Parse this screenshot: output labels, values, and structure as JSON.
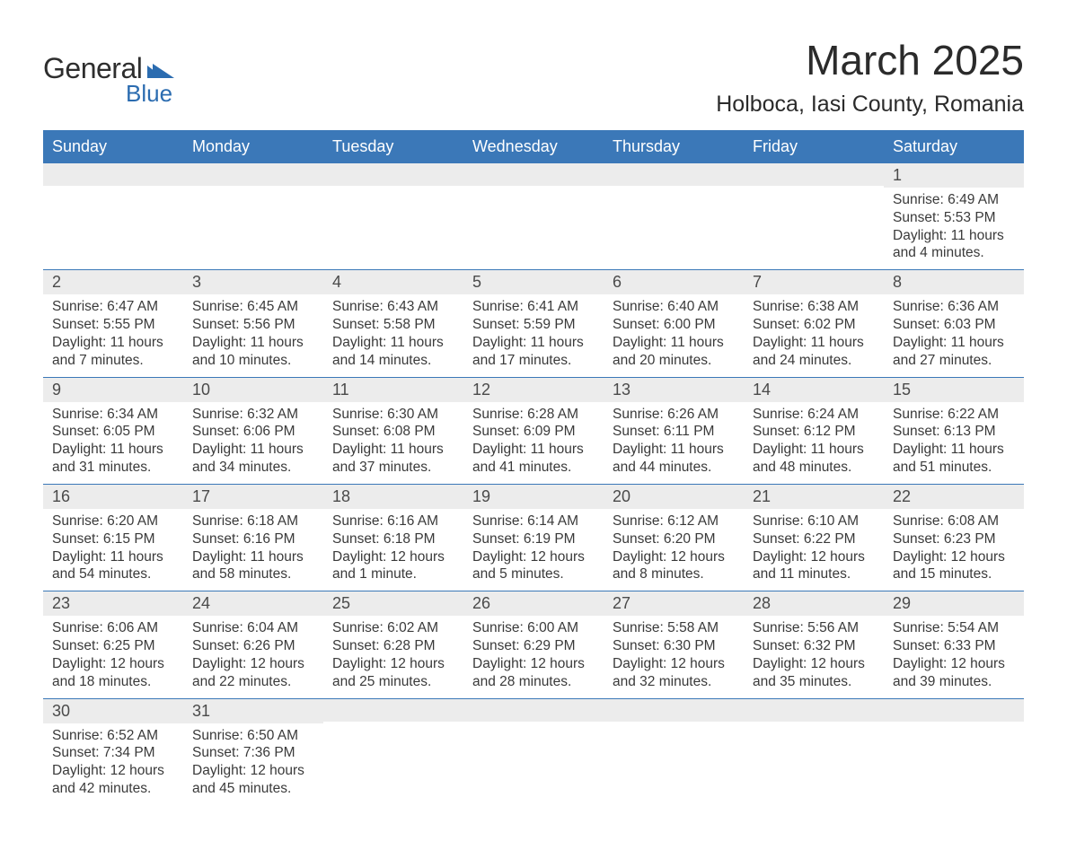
{
  "brand": {
    "logo_main": "General",
    "logo_sub": "Blue",
    "logo_color_dark": "#2e2e2e",
    "logo_color_accent": "#2b6cb0"
  },
  "header": {
    "month_title": "March 2025",
    "location": "Holboca, Iasi County, Romania"
  },
  "calendar": {
    "type": "table",
    "header_bg": "#3b78b8",
    "header_text_color": "#ffffff",
    "row_divider_color": "#3b78b8",
    "daynum_bg": "#ececec",
    "body_text_color": "#3a3a3a",
    "font_family": "Arial",
    "font_size_header": 18,
    "font_size_daynum": 18,
    "font_size_body": 15.5,
    "columns": [
      "Sunday",
      "Monday",
      "Tuesday",
      "Wednesday",
      "Thursday",
      "Friday",
      "Saturday"
    ],
    "weeks": [
      [
        null,
        null,
        null,
        null,
        null,
        null,
        {
          "n": "1",
          "sunrise": "Sunrise: 6:49 AM",
          "sunset": "Sunset: 5:53 PM",
          "daylight": "Daylight: 11 hours and 4 minutes."
        }
      ],
      [
        {
          "n": "2",
          "sunrise": "Sunrise: 6:47 AM",
          "sunset": "Sunset: 5:55 PM",
          "daylight": "Daylight: 11 hours and 7 minutes."
        },
        {
          "n": "3",
          "sunrise": "Sunrise: 6:45 AM",
          "sunset": "Sunset: 5:56 PM",
          "daylight": "Daylight: 11 hours and 10 minutes."
        },
        {
          "n": "4",
          "sunrise": "Sunrise: 6:43 AM",
          "sunset": "Sunset: 5:58 PM",
          "daylight": "Daylight: 11 hours and 14 minutes."
        },
        {
          "n": "5",
          "sunrise": "Sunrise: 6:41 AM",
          "sunset": "Sunset: 5:59 PM",
          "daylight": "Daylight: 11 hours and 17 minutes."
        },
        {
          "n": "6",
          "sunrise": "Sunrise: 6:40 AM",
          "sunset": "Sunset: 6:00 PM",
          "daylight": "Daylight: 11 hours and 20 minutes."
        },
        {
          "n": "7",
          "sunrise": "Sunrise: 6:38 AM",
          "sunset": "Sunset: 6:02 PM",
          "daylight": "Daylight: 11 hours and 24 minutes."
        },
        {
          "n": "8",
          "sunrise": "Sunrise: 6:36 AM",
          "sunset": "Sunset: 6:03 PM",
          "daylight": "Daylight: 11 hours and 27 minutes."
        }
      ],
      [
        {
          "n": "9",
          "sunrise": "Sunrise: 6:34 AM",
          "sunset": "Sunset: 6:05 PM",
          "daylight": "Daylight: 11 hours and 31 minutes."
        },
        {
          "n": "10",
          "sunrise": "Sunrise: 6:32 AM",
          "sunset": "Sunset: 6:06 PM",
          "daylight": "Daylight: 11 hours and 34 minutes."
        },
        {
          "n": "11",
          "sunrise": "Sunrise: 6:30 AM",
          "sunset": "Sunset: 6:08 PM",
          "daylight": "Daylight: 11 hours and 37 minutes."
        },
        {
          "n": "12",
          "sunrise": "Sunrise: 6:28 AM",
          "sunset": "Sunset: 6:09 PM",
          "daylight": "Daylight: 11 hours and 41 minutes."
        },
        {
          "n": "13",
          "sunrise": "Sunrise: 6:26 AM",
          "sunset": "Sunset: 6:11 PM",
          "daylight": "Daylight: 11 hours and 44 minutes."
        },
        {
          "n": "14",
          "sunrise": "Sunrise: 6:24 AM",
          "sunset": "Sunset: 6:12 PM",
          "daylight": "Daylight: 11 hours and 48 minutes."
        },
        {
          "n": "15",
          "sunrise": "Sunrise: 6:22 AM",
          "sunset": "Sunset: 6:13 PM",
          "daylight": "Daylight: 11 hours and 51 minutes."
        }
      ],
      [
        {
          "n": "16",
          "sunrise": "Sunrise: 6:20 AM",
          "sunset": "Sunset: 6:15 PM",
          "daylight": "Daylight: 11 hours and 54 minutes."
        },
        {
          "n": "17",
          "sunrise": "Sunrise: 6:18 AM",
          "sunset": "Sunset: 6:16 PM",
          "daylight": "Daylight: 11 hours and 58 minutes."
        },
        {
          "n": "18",
          "sunrise": "Sunrise: 6:16 AM",
          "sunset": "Sunset: 6:18 PM",
          "daylight": "Daylight: 12 hours and 1 minute."
        },
        {
          "n": "19",
          "sunrise": "Sunrise: 6:14 AM",
          "sunset": "Sunset: 6:19 PM",
          "daylight": "Daylight: 12 hours and 5 minutes."
        },
        {
          "n": "20",
          "sunrise": "Sunrise: 6:12 AM",
          "sunset": "Sunset: 6:20 PM",
          "daylight": "Daylight: 12 hours and 8 minutes."
        },
        {
          "n": "21",
          "sunrise": "Sunrise: 6:10 AM",
          "sunset": "Sunset: 6:22 PM",
          "daylight": "Daylight: 12 hours and 11 minutes."
        },
        {
          "n": "22",
          "sunrise": "Sunrise: 6:08 AM",
          "sunset": "Sunset: 6:23 PM",
          "daylight": "Daylight: 12 hours and 15 minutes."
        }
      ],
      [
        {
          "n": "23",
          "sunrise": "Sunrise: 6:06 AM",
          "sunset": "Sunset: 6:25 PM",
          "daylight": "Daylight: 12 hours and 18 minutes."
        },
        {
          "n": "24",
          "sunrise": "Sunrise: 6:04 AM",
          "sunset": "Sunset: 6:26 PM",
          "daylight": "Daylight: 12 hours and 22 minutes."
        },
        {
          "n": "25",
          "sunrise": "Sunrise: 6:02 AM",
          "sunset": "Sunset: 6:28 PM",
          "daylight": "Daylight: 12 hours and 25 minutes."
        },
        {
          "n": "26",
          "sunrise": "Sunrise: 6:00 AM",
          "sunset": "Sunset: 6:29 PM",
          "daylight": "Daylight: 12 hours and 28 minutes."
        },
        {
          "n": "27",
          "sunrise": "Sunrise: 5:58 AM",
          "sunset": "Sunset: 6:30 PM",
          "daylight": "Daylight: 12 hours and 32 minutes."
        },
        {
          "n": "28",
          "sunrise": "Sunrise: 5:56 AM",
          "sunset": "Sunset: 6:32 PM",
          "daylight": "Daylight: 12 hours and 35 minutes."
        },
        {
          "n": "29",
          "sunrise": "Sunrise: 5:54 AM",
          "sunset": "Sunset: 6:33 PM",
          "daylight": "Daylight: 12 hours and 39 minutes."
        }
      ],
      [
        {
          "n": "30",
          "sunrise": "Sunrise: 6:52 AM",
          "sunset": "Sunset: 7:34 PM",
          "daylight": "Daylight: 12 hours and 42 minutes."
        },
        {
          "n": "31",
          "sunrise": "Sunrise: 6:50 AM",
          "sunset": "Sunset: 7:36 PM",
          "daylight": "Daylight: 12 hours and 45 minutes."
        },
        null,
        null,
        null,
        null,
        null
      ]
    ]
  }
}
